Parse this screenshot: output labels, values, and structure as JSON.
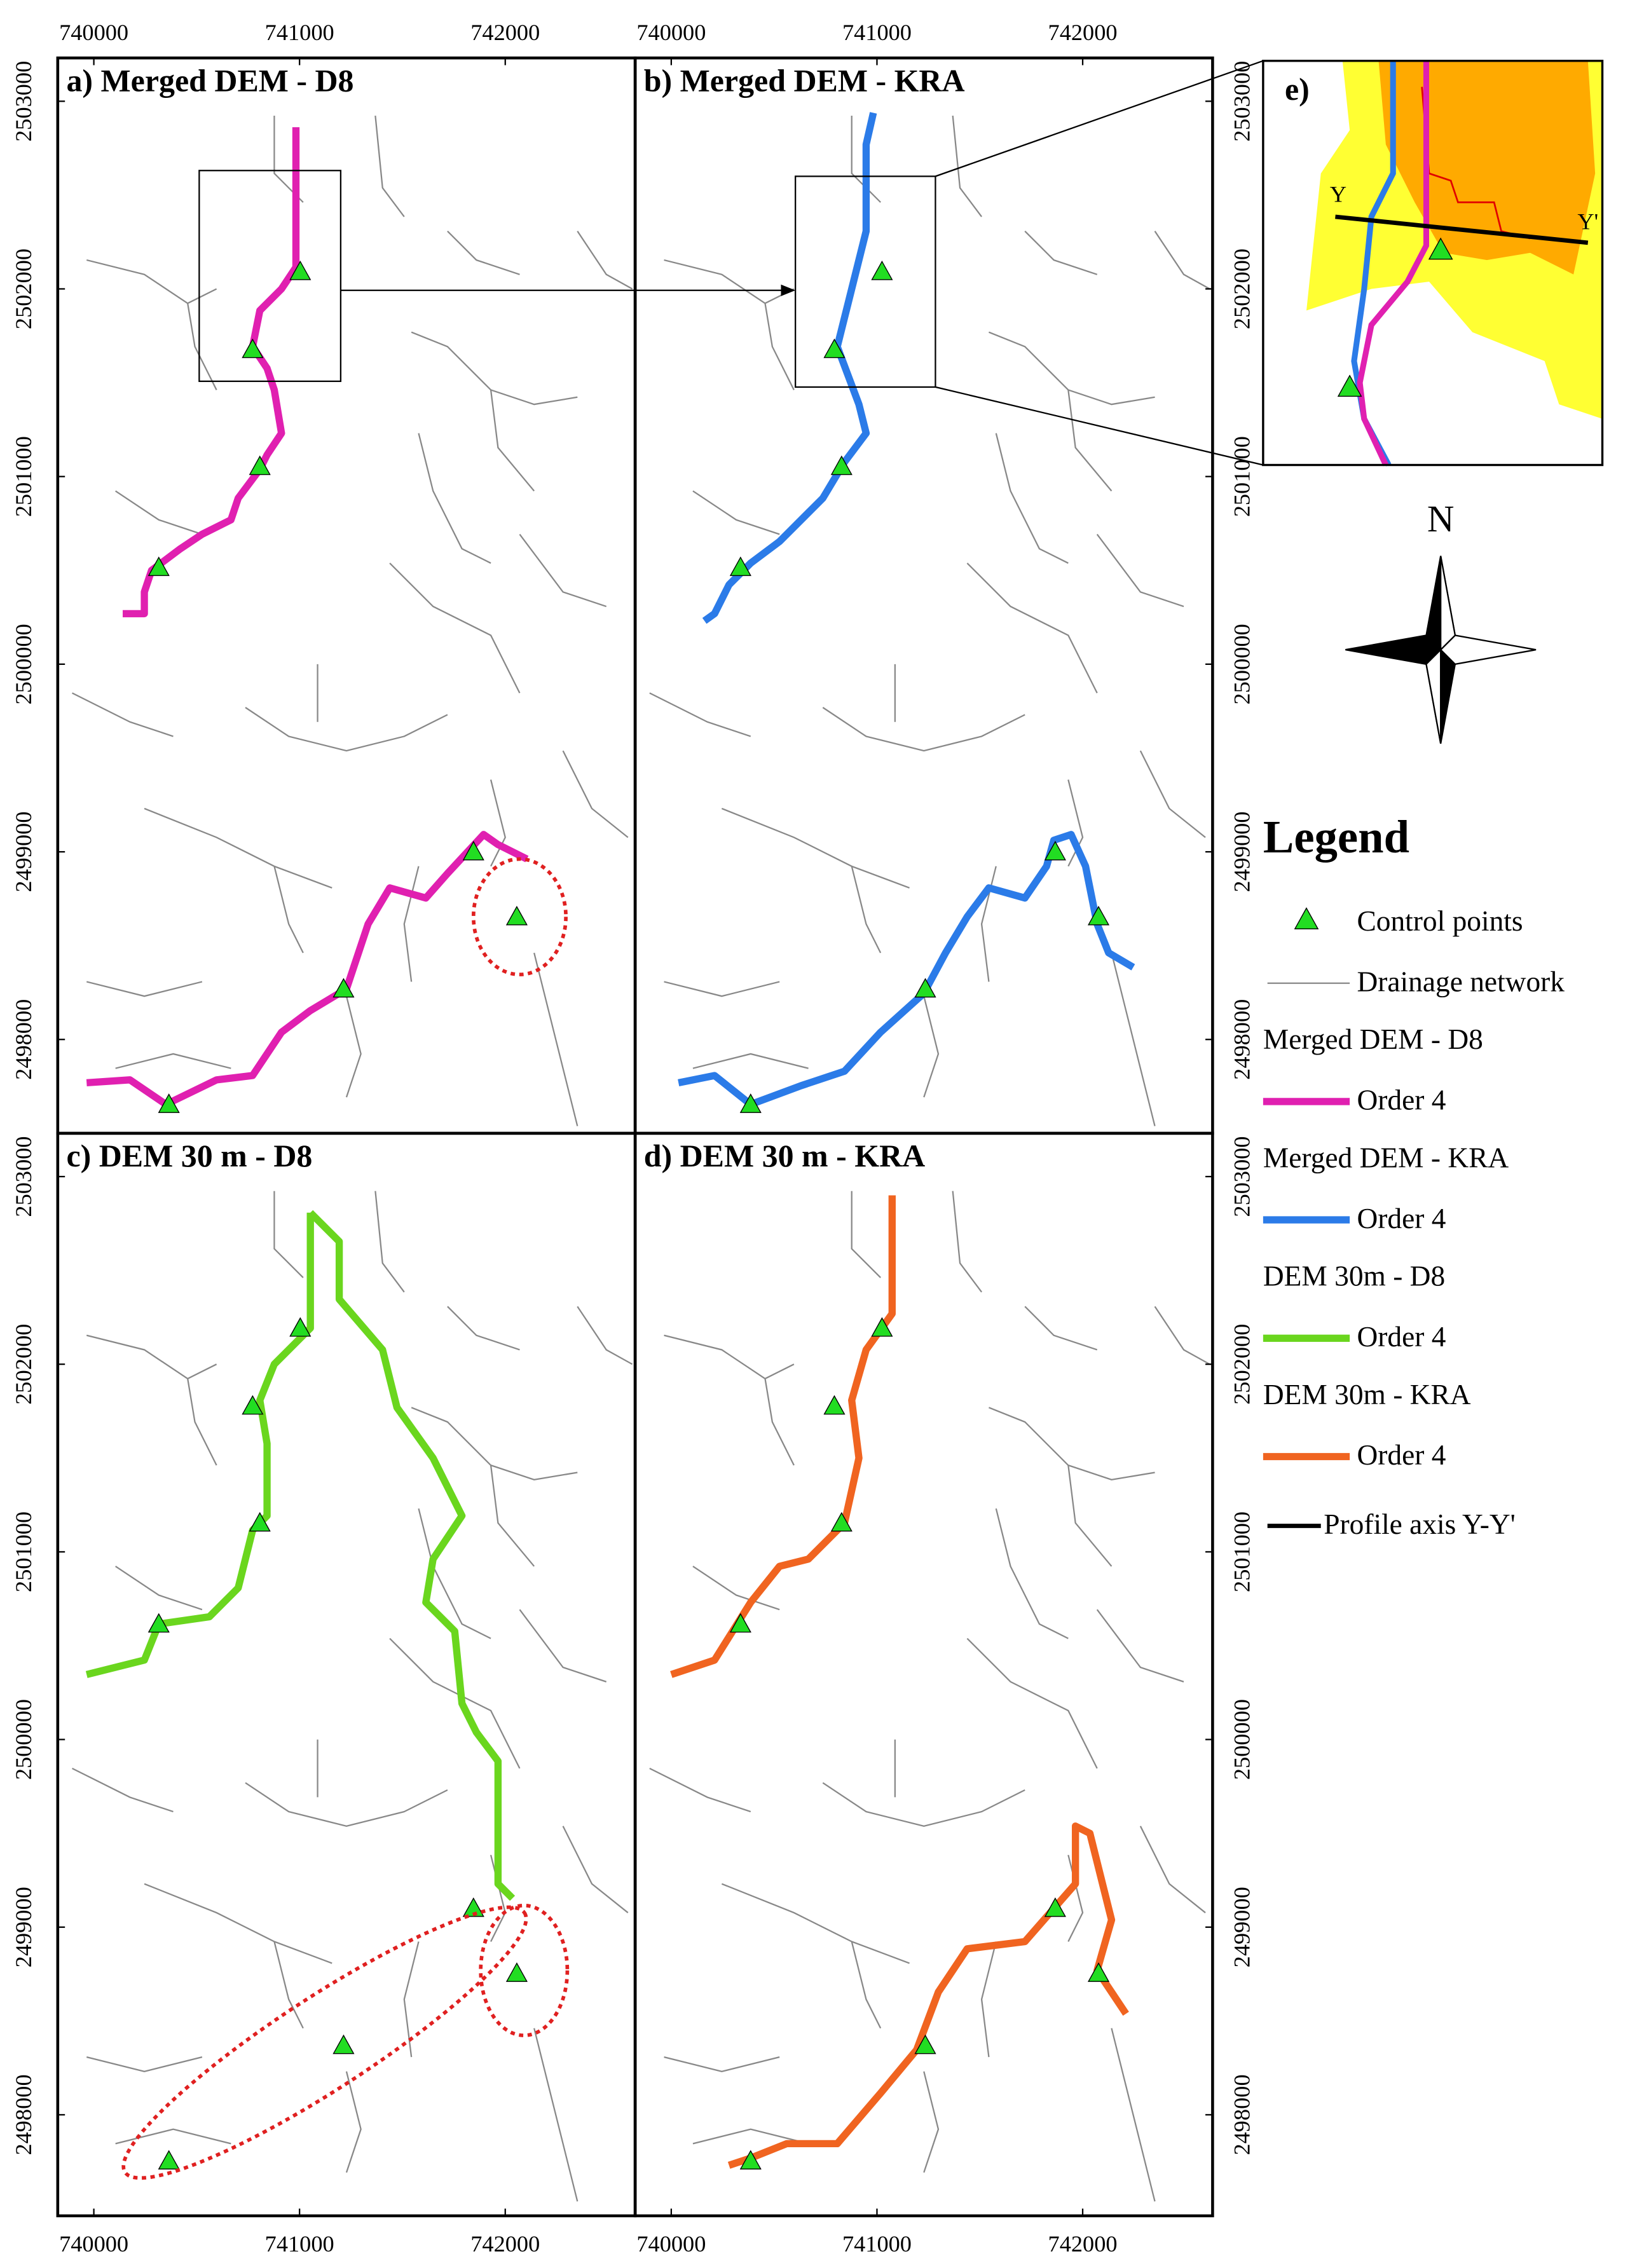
{
  "panels": [
    {
      "title": "a) Merged DEM - D8"
    },
    {
      "title": "b) Merged DEM - KRA"
    },
    {
      "title": "c) DEM 30 m - D8"
    },
    {
      "title": "d) DEM 30 m - KRA"
    }
  ],
  "x_ticks": [
    740000,
    741000,
    742000
  ],
  "y_ticks": [
    2498000,
    2499000,
    2500000,
    2501000,
    2502000,
    2503000
  ],
  "inset": {
    "title": "e)",
    "profile_start": "Y",
    "profile_end": "Y'"
  },
  "north": "N",
  "legend": {
    "title": "Legend",
    "control_points": {
      "label": "Control points",
      "color": "#22dd22"
    },
    "drainage": {
      "label": "Drainage network",
      "color": "#888888"
    },
    "groups": [
      {
        "name": "Merged DEM - D8",
        "label": "Order 4",
        "color": "#e020b0"
      },
      {
        "name": "Merged DEM - KRA",
        "label": "Order 4",
        "color": "#2b7be8"
      },
      {
        "name": "DEM 30m - D8",
        "label": "Order 4",
        "color": "#6ad61e"
      },
      {
        "name": "DEM 30m - KRA",
        "label": "Order 4",
        "color": "#f06420"
      }
    ],
    "profile": {
      "label": "Profile axis Y-Y'",
      "color": "#000000"
    }
  }
}
